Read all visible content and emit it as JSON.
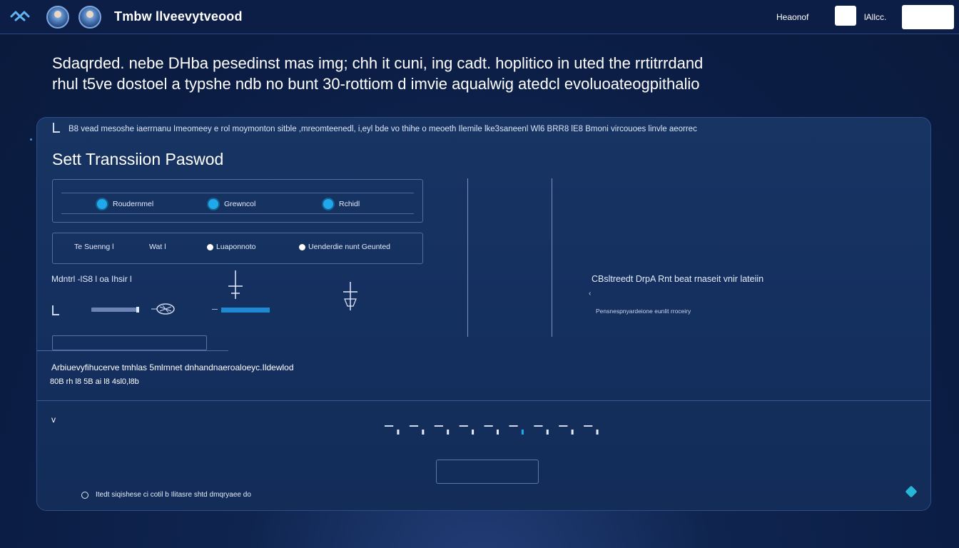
{
  "topbar": {
    "app_title": "Tmbw llveevytveood",
    "account_link": "Heaonof",
    "user_label": "lAllcc.",
    "search_value": ""
  },
  "headline": {
    "line1": "Sdaqrded. nebe DHba pesedinst mas img; chh it cuni, ing cadt. hoplitico in uted the rrtitrrdand",
    "line2": "rhul t5ve dostoel a typshe ndb no bunt 30-rottiom d imvie aqualwig atedcl evoluoateogpithalio"
  },
  "card": {
    "note": "B8  vead mesoshe iaerrnanu Imeomeey e rol moymonton sitble ,mreomteenedl, i,eyl bde vo thihe o meoeth Ilemile lke3saneenl  Wl6  BRR8  lE8  Bmoni vircouoes linvle aeorrec",
    "title": "Sett Transsiion Paswod",
    "steps": [
      {
        "label": "Roudernmel"
      },
      {
        "label": "Grewncol"
      },
      {
        "label": "Rchidl"
      }
    ],
    "options": {
      "text1": "Te  Suenng   l",
      "text2": "Wat l",
      "radio1": "Luaponnoto",
      "radio2": "Uenderdie  nunt  Geunted"
    },
    "field_label": "Mdntrl  -lS8  l  oa Ihsir l",
    "password_value": "",
    "info": {
      "title": "CBsltreedt  DrpA Rnt  beat  rnaseit  vnir  lateiin",
      "arrow": "‹",
      "sub": "Pensnespnyardeione  eunlit  rroceiry"
    },
    "notice_line1": "Arbiuevyfihucerve tmhlas 5mlmnet dnhandnaeroaloeyc.Ildewlod",
    "notice_line2": "80B  rh  l8  5B  ai  l8  4sl0,l8b",
    "collapse_glyph": "v",
    "submit_label": "",
    "footer_text": "Itedt siqishese  ci  cotil b Ilitasre shtd dmqryaee do"
  },
  "progress": {
    "current_step": 6,
    "total_steps": 9
  },
  "colors": {
    "accent": "#1fa9ec",
    "help": "#27b7d6",
    "background": "#0c1e46"
  },
  "icons": [
    "logo-icon",
    "avatar",
    "plus-icon",
    "handle-icon",
    "chevron-down-icon",
    "help-icon"
  ]
}
